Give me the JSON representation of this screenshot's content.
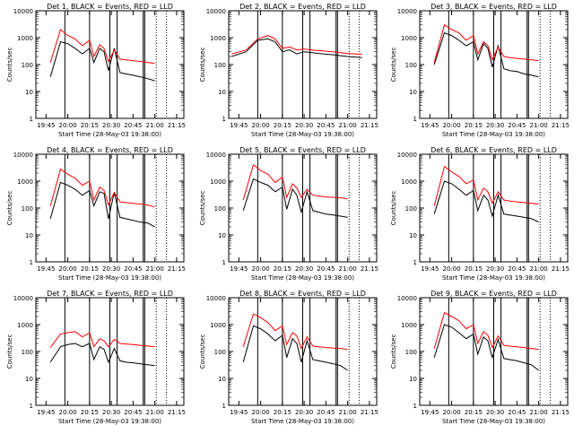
{
  "figure": {
    "shared_xlabel": "Start Time (28-May-03 19:38:00)",
    "shared_ylabel": "Counts/sec",
    "x_tick_labels": [
      "19:45",
      "20:00",
      "20:15",
      "20:30",
      "20:45",
      "21:00",
      "21:15"
    ],
    "y_tick_labels": [
      "1",
      "10",
      "100",
      "1000",
      "10000"
    ],
    "colors": {
      "events": "#000000",
      "lld": "#ff0000",
      "axes": "#000000"
    }
  },
  "chart_data": [
    {
      "type": "line",
      "title": "Det 1, BLACK = Events, RED = LLD",
      "xlabel": "Start Time (28-May-03 19:38:00)",
      "ylabel": "Counts/sec",
      "x_range": [
        "19:38",
        "21:20"
      ],
      "y_range": [
        1,
        10000
      ],
      "y_scale": "log",
      "x": [
        "19:48",
        "19:55",
        "20:00",
        "20:05",
        "20:10",
        "20:15",
        "20:18",
        "20:22",
        "20:25",
        "20:28",
        "20:32",
        "20:36",
        "20:40",
        "20:45",
        "20:50",
        "20:55",
        "21:00"
      ],
      "series": [
        {
          "name": "BLACK = Events",
          "values": [
            35,
            700,
            600,
            400,
            250,
            400,
            120,
            400,
            300,
            60,
            400,
            50,
            45,
            40,
            35,
            30,
            25
          ]
        },
        {
          "name": "RED = LLD",
          "values": [
            120,
            2000,
            1200,
            900,
            500,
            800,
            200,
            550,
            400,
            130,
            350,
            160,
            150,
            140,
            130,
            120,
            110
          ]
        }
      ],
      "vertical_lines": [
        "19:58",
        "20:15",
        "20:29",
        "20:34",
        "20:52",
        "20:53"
      ],
      "dotted_lines": [
        "21:01",
        "21:08"
      ]
    },
    {
      "type": "line",
      "title": "Det 2, BLACK = Events, RED = LLD",
      "xlabel": "Start Time (28-May-03 19:38:00)",
      "ylabel": "Counts/sec",
      "x_range": [
        "19:38",
        "21:20"
      ],
      "y_range": [
        1,
        10000
      ],
      "y_scale": "log",
      "x": [
        "19:40",
        "19:50",
        "19:58",
        "20:05",
        "20:10",
        "20:15",
        "20:20",
        "20:25",
        "20:30",
        "20:35",
        "20:40",
        "20:50",
        "21:00",
        "21:10"
      ],
      "series": [
        {
          "name": "BLACK = Events",
          "values": [
            200,
            300,
            800,
            900,
            700,
            300,
            350,
            250,
            300,
            280,
            260,
            230,
            200,
            180
          ]
        },
        {
          "name": "RED = LLD",
          "values": [
            250,
            350,
            900,
            1200,
            900,
            400,
            450,
            350,
            380,
            350,
            330,
            300,
            260,
            240
          ]
        }
      ],
      "vertical_lines": [
        "19:58",
        "20:15",
        "20:29",
        "20:34",
        "20:52",
        "20:53"
      ],
      "dotted_lines": [
        "21:01",
        "21:08"
      ]
    },
    {
      "type": "line",
      "title": "Det 3, BLACK = Events, RED = LLD",
      "xlabel": "Start Time (28-May-03 19:38:00)",
      "ylabel": "Counts/sec",
      "x_range": [
        "19:38",
        "21:20"
      ],
      "y_range": [
        1,
        10000
      ],
      "y_scale": "log",
      "x": [
        "19:48",
        "19:55",
        "20:00",
        "20:05",
        "20:10",
        "20:15",
        "20:18",
        "20:22",
        "20:25",
        "20:28",
        "20:32",
        "20:36",
        "20:40",
        "20:45",
        "20:50",
        "20:55",
        "21:00"
      ],
      "series": [
        {
          "name": "BLACK = Events",
          "values": [
            100,
            1500,
            1200,
            800,
            500,
            700,
            150,
            600,
            400,
            80,
            500,
            70,
            60,
            55,
            45,
            40,
            35
          ]
        },
        {
          "name": "RED = LLD",
          "values": [
            120,
            3000,
            2000,
            1500,
            800,
            1200,
            250,
            700,
            500,
            150,
            450,
            200,
            180,
            170,
            160,
            150,
            140
          ]
        }
      ],
      "vertical_lines": [
        "19:58",
        "20:15",
        "20:29",
        "20:34",
        "20:52",
        "20:53"
      ],
      "dotted_lines": [
        "21:01",
        "21:08"
      ]
    },
    {
      "type": "line",
      "title": "Det 4, BLACK = Events, RED = LLD",
      "xlabel": "Start Time (28-May-03 19:38:00)",
      "ylabel": "Counts/sec",
      "x_range": [
        "19:38",
        "21:20"
      ],
      "y_range": [
        1,
        10000
      ],
      "y_scale": "log",
      "x": [
        "19:48",
        "19:55",
        "20:00",
        "20:05",
        "20:10",
        "20:15",
        "20:18",
        "20:22",
        "20:25",
        "20:28",
        "20:32",
        "20:36",
        "20:40",
        "20:45",
        "20:50",
        "20:55",
        "21:00"
      ],
      "series": [
        {
          "name": "BLACK = Events",
          "values": [
            40,
            900,
            700,
            500,
            300,
            450,
            120,
            400,
            350,
            40,
            380,
            45,
            40,
            35,
            30,
            28,
            20
          ]
        },
        {
          "name": "RED = LLD",
          "values": [
            120,
            2800,
            1800,
            1300,
            700,
            1000,
            200,
            600,
            450,
            130,
            380,
            170,
            160,
            150,
            140,
            130,
            110
          ]
        }
      ],
      "vertical_lines": [
        "19:58",
        "20:15",
        "20:29",
        "20:34",
        "20:52",
        "20:53"
      ],
      "dotted_lines": [
        "21:01",
        "21:08"
      ]
    },
    {
      "type": "line",
      "title": "Det 5, BLACK = Events, RED = LLD",
      "xlabel": "Start Time (28-May-03 19:38:00)",
      "ylabel": "Counts/sec",
      "x_range": [
        "19:38",
        "21:20"
      ],
      "y_range": [
        1,
        10000
      ],
      "y_scale": "log",
      "x": [
        "19:48",
        "19:55",
        "20:00",
        "20:05",
        "20:10",
        "20:15",
        "20:18",
        "20:22",
        "20:25",
        "20:28",
        "20:32",
        "20:36",
        "20:40",
        "20:45",
        "20:50",
        "20:55",
        "21:00"
      ],
      "series": [
        {
          "name": "BLACK = Events",
          "values": [
            80,
            1200,
            900,
            700,
            400,
            600,
            90,
            500,
            300,
            70,
            400,
            80,
            70,
            60,
            55,
            50,
            45
          ]
        },
        {
          "name": "RED = LLD",
          "values": [
            200,
            4000,
            2500,
            1800,
            900,
            1400,
            250,
            800,
            550,
            250,
            500,
            300,
            280,
            260,
            250,
            240,
            220
          ]
        }
      ],
      "vertical_lines": [
        "19:58",
        "20:15",
        "20:29",
        "20:34",
        "20:52",
        "20:53"
      ],
      "dotted_lines": [
        "21:01",
        "21:08"
      ]
    },
    {
      "type": "line",
      "title": "Det 6, BLACK = Events, RED = LLD",
      "xlabel": "Start Time (28-May-03 19:38:00)",
      "ylabel": "Counts/sec",
      "x_range": [
        "19:38",
        "21:20"
      ],
      "y_range": [
        1,
        10000
      ],
      "y_scale": "log",
      "x": [
        "19:48",
        "19:55",
        "20:00",
        "20:05",
        "20:10",
        "20:15",
        "20:18",
        "20:22",
        "20:25",
        "20:28",
        "20:32",
        "20:36",
        "20:40",
        "20:45",
        "20:50",
        "20:55",
        "21:00"
      ],
      "series": [
        {
          "name": "BLACK = Events",
          "values": [
            60,
            1000,
            800,
            500,
            300,
            450,
            80,
            300,
            200,
            50,
            300,
            60,
            55,
            50,
            45,
            40,
            30
          ]
        },
        {
          "name": "RED = LLD",
          "values": [
            120,
            3500,
            2200,
            1500,
            800,
            1100,
            200,
            550,
            400,
            150,
            400,
            200,
            180,
            170,
            160,
            150,
            140
          ]
        }
      ],
      "vertical_lines": [
        "19:58",
        "20:15",
        "20:29",
        "20:34",
        "20:52",
        "20:53"
      ],
      "dotted_lines": [
        "21:01",
        "21:08"
      ]
    },
    {
      "type": "line",
      "title": "Det 7, BLACK = Events, RED = LLD",
      "xlabel": "Start Time (28-May-03 19:38:00)",
      "ylabel": "Counts/sec",
      "x_range": [
        "19:38",
        "21:20"
      ],
      "y_range": [
        1,
        10000
      ],
      "y_scale": "log",
      "x": [
        "19:48",
        "19:55",
        "20:00",
        "20:05",
        "20:10",
        "20:15",
        "20:18",
        "20:22",
        "20:25",
        "20:28",
        "20:32",
        "20:36",
        "20:40",
        "20:45",
        "20:50",
        "20:55",
        "21:00"
      ],
      "series": [
        {
          "name": "BLACK = Events",
          "values": [
            40,
            150,
            180,
            200,
            150,
            200,
            50,
            150,
            120,
            40,
            130,
            45,
            40,
            38,
            35,
            32,
            30
          ]
        },
        {
          "name": "RED = LLD",
          "values": [
            140,
            450,
            500,
            550,
            350,
            500,
            150,
            300,
            250,
            150,
            280,
            200,
            190,
            180,
            170,
            160,
            150
          ]
        }
      ],
      "vertical_lines": [
        "19:58",
        "20:15",
        "20:29",
        "20:34",
        "20:52",
        "20:53"
      ],
      "dotted_lines": [
        "21:01",
        "21:08"
      ]
    },
    {
      "type": "line",
      "title": "Det 8, BLACK = Events, RED = LLD",
      "xlabel": "Start Time (28-May-03 19:38:00)",
      "ylabel": "Counts/sec",
      "x_range": [
        "19:38",
        "21:20"
      ],
      "y_range": [
        1,
        10000
      ],
      "y_scale": "log",
      "x": [
        "19:48",
        "19:55",
        "20:00",
        "20:05",
        "20:10",
        "20:15",
        "20:18",
        "20:22",
        "20:25",
        "20:28",
        "20:32",
        "20:36",
        "20:40",
        "20:45",
        "20:50",
        "20:55",
        "21:00"
      ],
      "series": [
        {
          "name": "BLACK = Events",
          "values": [
            40,
            900,
            700,
            450,
            250,
            400,
            60,
            300,
            200,
            40,
            250,
            50,
            45,
            40,
            35,
            30,
            20
          ]
        },
        {
          "name": "RED = LLD",
          "values": [
            150,
            2500,
            1800,
            1200,
            600,
            900,
            180,
            500,
            380,
            130,
            350,
            160,
            150,
            140,
            135,
            130,
            120
          ]
        }
      ],
      "vertical_lines": [
        "19:58",
        "20:15",
        "20:29",
        "20:34",
        "20:52",
        "20:53"
      ],
      "dotted_lines": [
        "21:01",
        "21:08"
      ]
    },
    {
      "type": "line",
      "title": "Det 9, BLACK = Events, RED = LLD",
      "xlabel": "Start Time (28-May-03 19:38:00)",
      "ylabel": "Counts/sec",
      "x_range": [
        "19:38",
        "21:20"
      ],
      "y_range": [
        1,
        10000
      ],
      "y_scale": "log",
      "x": [
        "19:48",
        "19:55",
        "20:00",
        "20:05",
        "20:10",
        "20:15",
        "20:18",
        "20:22",
        "20:25",
        "20:28",
        "20:32",
        "20:36",
        "20:40",
        "20:45",
        "20:50",
        "20:55",
        "21:00"
      ],
      "series": [
        {
          "name": "BLACK = Events",
          "values": [
            60,
            1000,
            800,
            500,
            300,
            450,
            80,
            350,
            250,
            60,
            280,
            55,
            50,
            45,
            38,
            32,
            20
          ]
        },
        {
          "name": "RED = LLD",
          "values": [
            130,
            2800,
            2000,
            1400,
            700,
            1000,
            200,
            550,
            400,
            140,
            380,
            170,
            160,
            150,
            140,
            130,
            120
          ]
        }
      ],
      "vertical_lines": [
        "19:58",
        "20:15",
        "20:29",
        "20:34",
        "20:52",
        "20:53"
      ],
      "dotted_lines": [
        "21:01",
        "21:08"
      ]
    }
  ]
}
